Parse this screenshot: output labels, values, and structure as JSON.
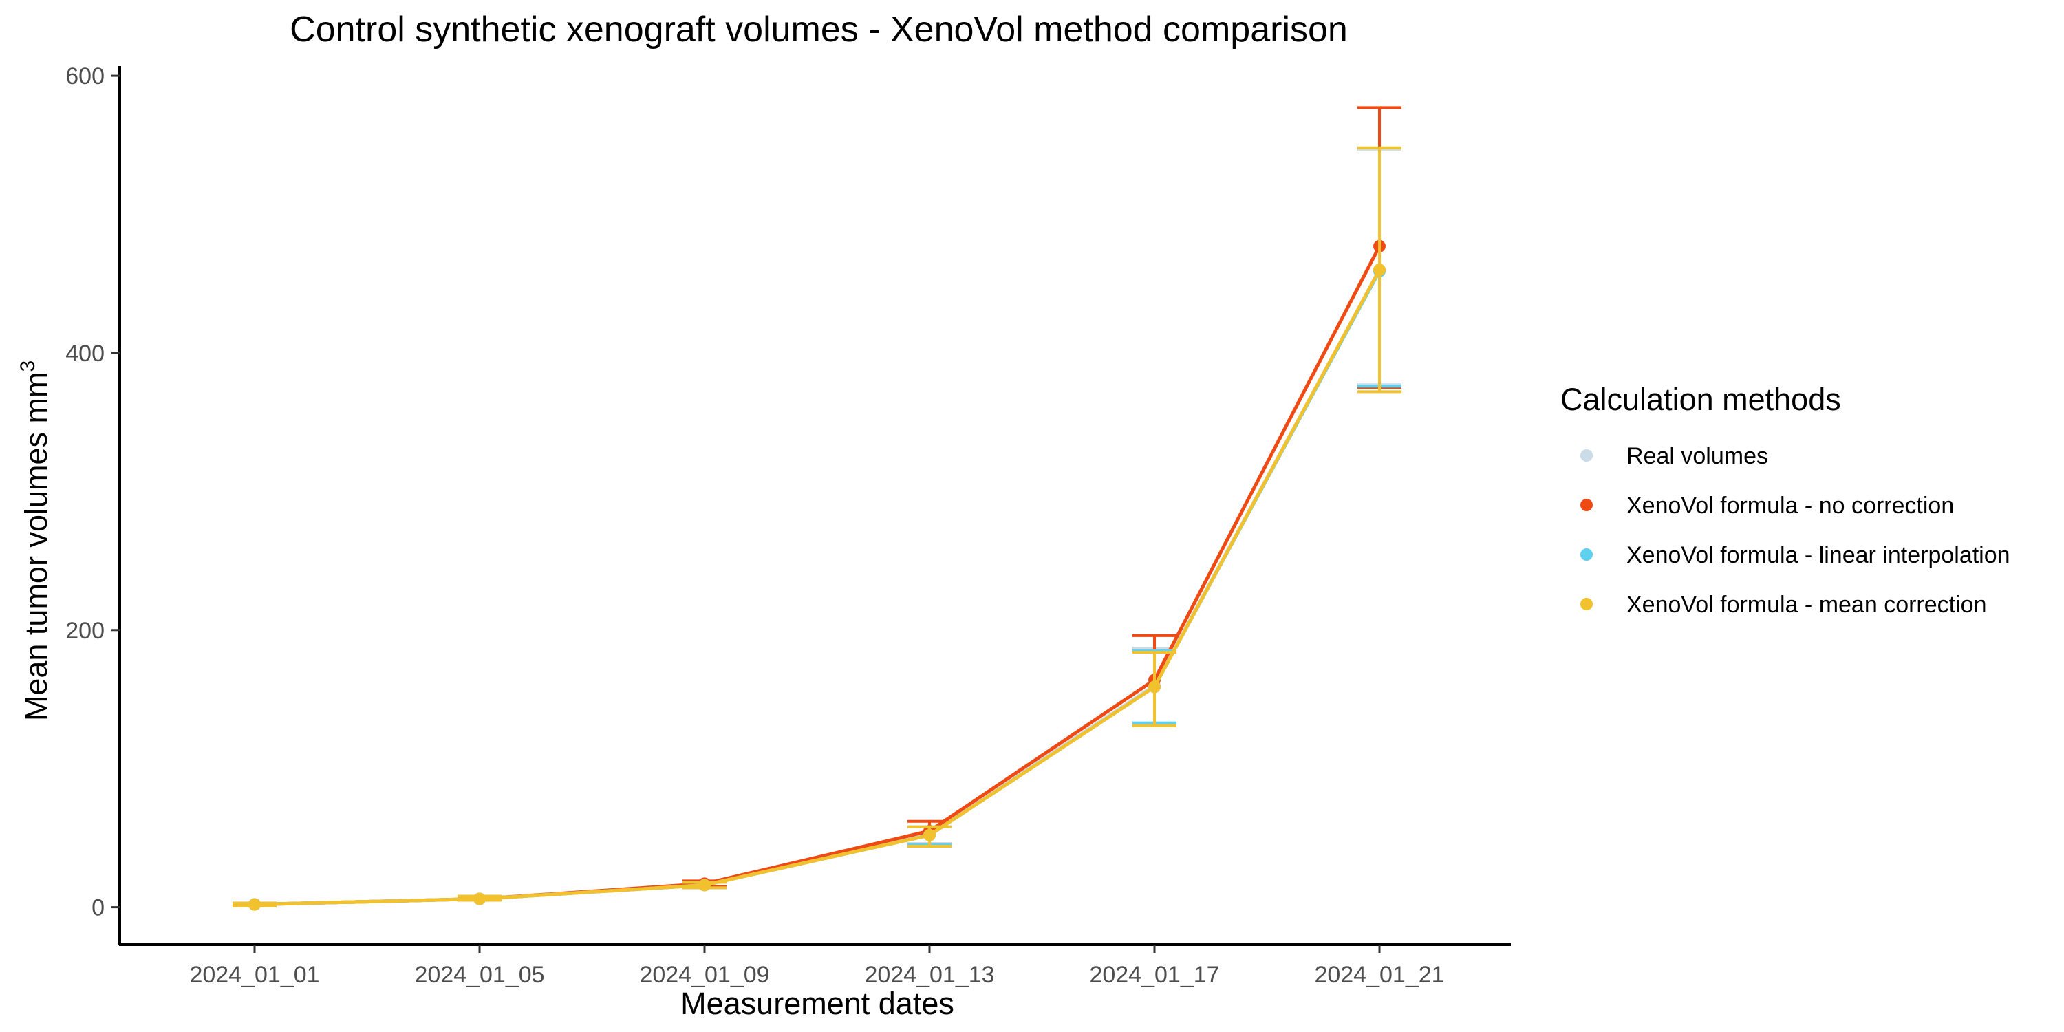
{
  "chart_data": {
    "type": "line",
    "title": "Control synthetic xenograft volumes - XenoVol method comparison",
    "xlabel": "Measurement dates",
    "ylabel": "Mean tumor volumes mm",
    "ylabel_superscript": "3",
    "categories": [
      "2024_01_01",
      "2024_01_05",
      "2024_01_09",
      "2024_01_13",
      "2024_01_17",
      "2024_01_21"
    ],
    "ylim": [
      -27,
      607
    ],
    "yticks": [
      0,
      200,
      400,
      600
    ],
    "grid": false,
    "legend": {
      "title": "Calculation methods",
      "position": "right"
    },
    "series": [
      {
        "name": "Real volumes",
        "color": "#c9dce8",
        "values": [
          2,
          6,
          16,
          53,
          160,
          460
        ],
        "errors": [
          [
            1,
            3
          ],
          [
            5,
            8
          ],
          [
            14,
            18
          ],
          [
            46,
            58
          ],
          [
            133,
            187
          ],
          [
            377,
            547
          ]
        ]
      },
      {
        "name": "XenoVol formula - no correction",
        "color": "#f04a14",
        "values": [
          2,
          6,
          17,
          55,
          164,
          477
        ],
        "errors": [
          [
            1,
            3
          ],
          [
            5,
            8
          ],
          [
            15,
            19
          ],
          [
            45,
            62
          ],
          [
            132,
            196
          ],
          [
            375,
            577
          ]
        ]
      },
      {
        "name": "XenoVol formula - linear interpolation",
        "color": "#5fd0ed",
        "values": [
          2,
          6,
          16,
          52,
          159,
          459
        ],
        "errors": [
          [
            1,
            3
          ],
          [
            5,
            8
          ],
          [
            14,
            18
          ],
          [
            45,
            58
          ],
          [
            133,
            185
          ],
          [
            376,
            548
          ]
        ]
      },
      {
        "name": "XenoVol formula - mean correction",
        "color": "#f2c12e",
        "values": [
          2,
          6,
          16,
          52,
          159,
          460
        ],
        "errors": [
          [
            1,
            3
          ],
          [
            5,
            8
          ],
          [
            14,
            18
          ],
          [
            44,
            58
          ],
          [
            131,
            184
          ],
          [
            372,
            548
          ]
        ]
      }
    ]
  }
}
